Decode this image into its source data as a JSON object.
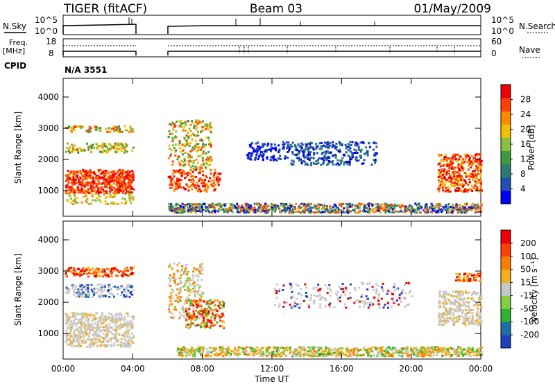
{
  "header": {
    "radar": "TIGER (fitACF)",
    "beam": "Beam 03",
    "date": "01/May/2009"
  },
  "panels": {
    "nsky_label": "N.Sky",
    "nsearch_label": "N.Search",
    "scale_hi": "10^5",
    "scale_lo": "10^0",
    "freq_label_top": "Freq.",
    "freq_label_unit": "[MHz]",
    "freq_ticks": [
      "18",
      "8"
    ],
    "nave_label": "Nave",
    "nave_ticks": [
      "60",
      "0"
    ],
    "cpid_label": "CPID",
    "cpid_value": "N/A 3551"
  },
  "chart_data": [
    {
      "type": "heatmap",
      "title": "",
      "xlabel": "",
      "ylabel": "Slant Range [km]",
      "x_ticks": [
        "00:00",
        "04:00",
        "08:00",
        "12:00",
        "16:00",
        "20:00",
        "00:00"
      ],
      "xlim": [
        0,
        24
      ],
      "y_ticks": [
        1000,
        2000,
        3000,
        4000
      ],
      "ylim": [
        180,
        4600
      ],
      "colorbar_label": "Power [dB]",
      "colorbar_ticks": [
        "28",
        "24",
        "20",
        "16",
        "12",
        "8",
        "4"
      ],
      "colors": [
        "#0000ee",
        "#2050b0",
        "#2e7a6e",
        "#3e9a3e",
        "#88c040",
        "#f0c000",
        "#ff8c00",
        "#ff4000",
        "#ee0000"
      ],
      "data_gaps_hours": [
        [
          4.1,
          6.0
        ]
      ]
    },
    {
      "type": "heatmap",
      "title": "",
      "xlabel": "Time UT",
      "ylabel": "Slant Range [km]",
      "x_ticks": [
        "00:00",
        "04:00",
        "08:00",
        "12:00",
        "16:00",
        "20:00",
        "00:00"
      ],
      "xlim": [
        0,
        24
      ],
      "y_ticks": [
        1000,
        2000,
        3000,
        4000
      ],
      "ylim": [
        180,
        4600
      ],
      "colorbar_label": "Velocity [m s⁻¹]",
      "colorbar_ticks": [
        "200",
        "100",
        "50",
        "15",
        "-15",
        "-50",
        "-100",
        "-200"
      ],
      "colors": [
        "#2040c0",
        "#1a70a0",
        "#30b030",
        "#80d040",
        "#c8c8c8",
        "#f0b020",
        "#ff8000",
        "#ff4000",
        "#ee0000"
      ],
      "data_gaps_hours": [
        [
          4.1,
          6.0
        ]
      ]
    }
  ]
}
